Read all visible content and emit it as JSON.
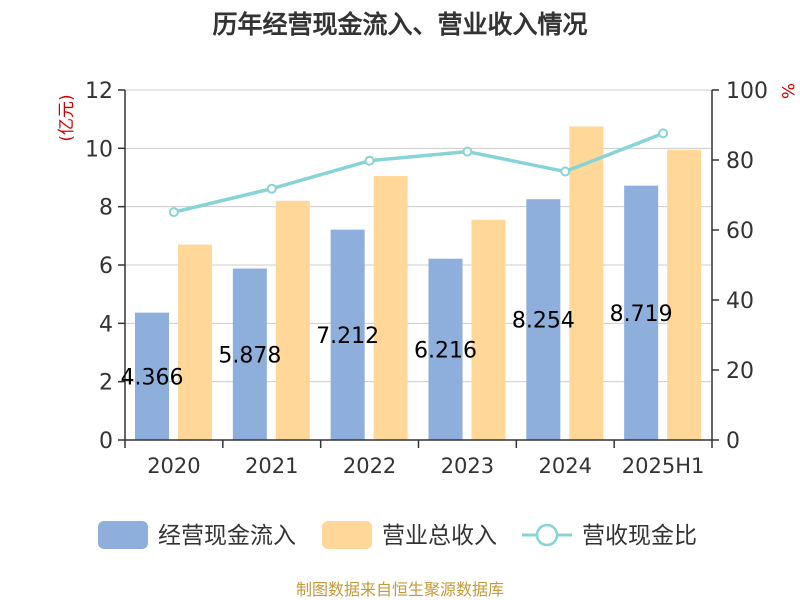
{
  "chart_data": {
    "type": "bar",
    "title": "历年经营现金流入、营业收入情况",
    "categories": [
      "2020",
      "2021",
      "2022",
      "2023",
      "2024",
      "2025H1"
    ],
    "y_left": {
      "unit": "(亿元)",
      "ylim": [
        0,
        12
      ],
      "ticks": [
        0,
        2,
        4,
        6,
        8,
        10,
        12
      ]
    },
    "y_right": {
      "unit": "%",
      "ylim": [
        0,
        100
      ],
      "ticks": [
        0,
        20,
        40,
        60,
        80,
        100
      ]
    },
    "series": [
      {
        "name": "经营现金流入",
        "kind": "bar",
        "axis": "left",
        "color": "#8eaedb",
        "values": [
          4.366,
          5.878,
          7.212,
          6.216,
          8.254,
          8.719
        ],
        "labels": [
          "4.366",
          "5.878",
          "7.212",
          "6.216",
          "8.254",
          "8.719"
        ]
      },
      {
        "name": "营业总收入",
        "kind": "bar",
        "axis": "left",
        "color": "#ffd899",
        "values": [
          6.7,
          8.2,
          9.05,
          7.55,
          10.75,
          9.95
        ]
      },
      {
        "name": "营收现金比",
        "kind": "line",
        "axis": "right",
        "color": "#88d3d6",
        "values": [
          65.1,
          71.8,
          79.8,
          82.4,
          76.7,
          87.6
        ]
      }
    ],
    "grid": true,
    "legend": "bottom"
  },
  "footer": {
    "source": "制图数据来自恒生聚源数据库"
  }
}
